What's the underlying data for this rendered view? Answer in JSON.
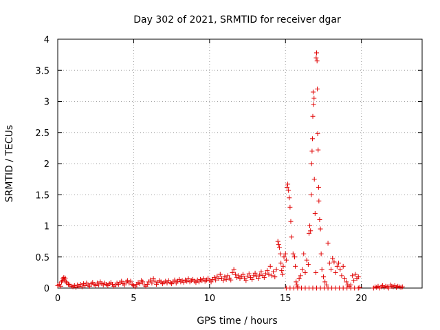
{
  "chart_data": {
    "type": "scatter",
    "title": "Day 302 of 2021, SRMTID for receiver dgar",
    "xlabel": "GPS time / hours",
    "ylabel": "SRMTID / TECUs",
    "xlim": [
      0,
      24
    ],
    "ylim": [
      0,
      4
    ],
    "x_ticks": [
      0,
      5,
      10,
      15,
      20
    ],
    "y_ticks": [
      0,
      0.5,
      1,
      1.5,
      2,
      2.5,
      3,
      3.5,
      4
    ],
    "x_tick_labels": [
      "0",
      "5",
      "10",
      "15",
      "20"
    ],
    "y_tick_labels": [
      "0",
      "0.5",
      "1",
      "1.5",
      "2",
      "2.5",
      "3",
      "3.5",
      "4"
    ],
    "grid": true,
    "marker": "+",
    "color": "#e00000",
    "series": [
      {
        "name": "dgar",
        "points": [
          [
            0.0,
            0.04
          ],
          [
            0.1,
            0.06
          ],
          [
            0.2,
            0.03
          ],
          [
            0.25,
            0.1
          ],
          [
            0.3,
            0.12
          ],
          [
            0.35,
            0.15
          ],
          [
            0.4,
            0.17
          ],
          [
            0.45,
            0.13
          ],
          [
            0.5,
            0.16
          ],
          [
            0.55,
            0.1
          ],
          [
            0.6,
            0.08
          ],
          [
            0.7,
            0.06
          ],
          [
            0.8,
            0.05
          ],
          [
            0.9,
            0.03
          ],
          [
            1.0,
            0.02
          ],
          [
            1.1,
            0.04
          ],
          [
            1.2,
            0.01
          ],
          [
            1.3,
            0.05
          ],
          [
            1.4,
            0.03
          ],
          [
            1.5,
            0.06
          ],
          [
            1.6,
            0.02
          ],
          [
            1.7,
            0.07
          ],
          [
            1.8,
            0.04
          ],
          [
            1.9,
            0.08
          ],
          [
            2.0,
            0.05
          ],
          [
            2.1,
            0.03
          ],
          [
            2.2,
            0.07
          ],
          [
            2.3,
            0.09
          ],
          [
            2.4,
            0.06
          ],
          [
            2.5,
            0.04
          ],
          [
            2.6,
            0.08
          ],
          [
            2.7,
            0.05
          ],
          [
            2.8,
            0.1
          ],
          [
            2.9,
            0.07
          ],
          [
            3.0,
            0.05
          ],
          [
            3.1,
            0.08
          ],
          [
            3.2,
            0.06
          ],
          [
            3.3,
            0.04
          ],
          [
            3.4,
            0.07
          ],
          [
            3.5,
            0.09
          ],
          [
            3.6,
            0.06
          ],
          [
            3.7,
            0.03
          ],
          [
            3.8,
            0.05
          ],
          [
            3.9,
            0.08
          ],
          [
            4.0,
            0.06
          ],
          [
            4.1,
            0.09
          ],
          [
            4.2,
            0.11
          ],
          [
            4.3,
            0.07
          ],
          [
            4.4,
            0.05
          ],
          [
            4.5,
            0.1
          ],
          [
            4.6,
            0.12
          ],
          [
            4.7,
            0.08
          ],
          [
            4.8,
            0.11
          ],
          [
            4.9,
            0.06
          ],
          [
            5.0,
            0.04
          ],
          [
            5.1,
            0.02
          ],
          [
            5.2,
            0.06
          ],
          [
            5.3,
            0.09
          ],
          [
            5.4,
            0.07
          ],
          [
            5.5,
            0.12
          ],
          [
            5.6,
            0.1
          ],
          [
            5.7,
            0.05
          ],
          [
            5.8,
            0.03
          ],
          [
            5.9,
            0.06
          ],
          [
            6.0,
            0.1
          ],
          [
            6.1,
            0.13
          ],
          [
            6.2,
            0.08
          ],
          [
            6.3,
            0.15
          ],
          [
            6.4,
            0.11
          ],
          [
            6.5,
            0.06
          ],
          [
            6.6,
            0.09
          ],
          [
            6.7,
            0.12
          ],
          [
            6.8,
            0.1
          ],
          [
            6.9,
            0.07
          ],
          [
            7.0,
            0.09
          ],
          [
            7.1,
            0.11
          ],
          [
            7.2,
            0.08
          ],
          [
            7.3,
            0.12
          ],
          [
            7.4,
            0.09
          ],
          [
            7.5,
            0.07
          ],
          [
            7.6,
            0.1
          ],
          [
            7.7,
            0.13
          ],
          [
            7.8,
            0.08
          ],
          [
            7.9,
            0.11
          ],
          [
            8.0,
            0.14
          ],
          [
            8.1,
            0.1
          ],
          [
            8.2,
            0.12
          ],
          [
            8.3,
            0.09
          ],
          [
            8.4,
            0.13
          ],
          [
            8.5,
            0.11
          ],
          [
            8.6,
            0.15
          ],
          [
            8.7,
            0.1
          ],
          [
            8.8,
            0.12
          ],
          [
            8.9,
            0.14
          ],
          [
            9.0,
            0.11
          ],
          [
            9.1,
            0.09
          ],
          [
            9.2,
            0.13
          ],
          [
            9.3,
            0.1
          ],
          [
            9.4,
            0.14
          ],
          [
            9.5,
            0.12
          ],
          [
            9.6,
            0.15
          ],
          [
            9.7,
            0.11
          ],
          [
            9.8,
            0.13
          ],
          [
            9.9,
            0.16
          ],
          [
            10.0,
            0.12
          ],
          [
            10.1,
            0.1
          ],
          [
            10.2,
            0.14
          ],
          [
            10.3,
            0.17
          ],
          [
            10.4,
            0.13
          ],
          [
            10.5,
            0.19
          ],
          [
            10.6,
            0.15
          ],
          [
            10.7,
            0.22
          ],
          [
            10.8,
            0.16
          ],
          [
            10.9,
            0.12
          ],
          [
            11.0,
            0.18
          ],
          [
            11.1,
            0.14
          ],
          [
            11.2,
            0.2
          ],
          [
            11.3,
            0.16
          ],
          [
            11.4,
            0.13
          ],
          [
            11.5,
            0.25
          ],
          [
            11.6,
            0.3
          ],
          [
            11.7,
            0.22
          ],
          [
            11.8,
            0.17
          ],
          [
            11.9,
            0.2
          ],
          [
            12.0,
            0.15
          ],
          [
            12.1,
            0.18
          ],
          [
            12.2,
            0.22
          ],
          [
            12.3,
            0.16
          ],
          [
            12.4,
            0.12
          ],
          [
            12.5,
            0.19
          ],
          [
            12.6,
            0.23
          ],
          [
            12.7,
            0.17
          ],
          [
            12.8,
            0.14
          ],
          [
            12.9,
            0.2
          ],
          [
            13.0,
            0.24
          ],
          [
            13.1,
            0.19
          ],
          [
            13.2,
            0.15
          ],
          [
            13.3,
            0.21
          ],
          [
            13.4,
            0.26
          ],
          [
            13.5,
            0.2
          ],
          [
            13.6,
            0.17
          ],
          [
            13.7,
            0.23
          ],
          [
            13.8,
            0.28
          ],
          [
            13.9,
            0.22
          ],
          [
            14.0,
            0.35
          ],
          [
            14.1,
            0.2
          ],
          [
            14.2,
            0.26
          ],
          [
            14.3,
            0.18
          ],
          [
            14.4,
            0.3
          ],
          [
            14.5,
            0.75
          ],
          [
            14.55,
            0.7
          ],
          [
            14.6,
            0.65
          ],
          [
            14.65,
            0.55
          ],
          [
            14.7,
            0.4
          ],
          [
            14.75,
            0.28
          ],
          [
            14.8,
            0.22
          ],
          [
            14.85,
            0.35
          ],
          [
            14.9,
            0.5
          ],
          [
            15.0,
            0.55
          ],
          [
            15.05,
            0.45
          ],
          [
            15.1,
            1.62
          ],
          [
            15.15,
            1.67
          ],
          [
            15.2,
            1.57
          ],
          [
            15.25,
            1.45
          ],
          [
            15.3,
            1.3
          ],
          [
            15.35,
            1.07
          ],
          [
            15.4,
            0.82
          ],
          [
            15.5,
            0.55
          ],
          [
            15.6,
            0.5
          ],
          [
            15.65,
            0.35
          ],
          [
            15.7,
            0.1
          ],
          [
            15.75,
            0.05
          ],
          [
            15.8,
            0.02
          ],
          [
            15.9,
            0.15
          ],
          [
            16.0,
            0.2
          ],
          [
            16.1,
            0.3
          ],
          [
            16.2,
            0.55
          ],
          [
            16.3,
            0.25
          ],
          [
            16.4,
            0.45
          ],
          [
            16.5,
            0.38
          ],
          [
            16.55,
            0.88
          ],
          [
            16.6,
            1.0
          ],
          [
            16.65,
            0.92
          ],
          [
            16.7,
            1.5
          ],
          [
            16.72,
            2.0
          ],
          [
            16.75,
            2.2
          ],
          [
            16.78,
            2.4
          ],
          [
            16.8,
            2.76
          ],
          [
            16.82,
            3.15
          ],
          [
            16.85,
            2.95
          ],
          [
            16.88,
            3.05
          ],
          [
            16.9,
            1.75
          ],
          [
            16.95,
            1.2
          ],
          [
            17.0,
            0.25
          ],
          [
            17.02,
            3.7
          ],
          [
            17.05,
            3.78
          ],
          [
            17.08,
            3.65
          ],
          [
            17.1,
            3.2
          ],
          [
            17.12,
            2.48
          ],
          [
            17.15,
            2.22
          ],
          [
            17.18,
            1.62
          ],
          [
            17.2,
            1.4
          ],
          [
            17.25,
            1.1
          ],
          [
            17.3,
            0.95
          ],
          [
            17.35,
            0.55
          ],
          [
            17.4,
            0.3
          ],
          [
            17.5,
            0.18
          ],
          [
            17.6,
            0.1
          ],
          [
            17.7,
            0.05
          ],
          [
            17.8,
            0.72
          ],
          [
            17.9,
            0.4
          ],
          [
            18.0,
            0.3
          ],
          [
            18.1,
            0.48
          ],
          [
            18.2,
            0.42
          ],
          [
            18.3,
            0.25
          ],
          [
            18.4,
            0.35
          ],
          [
            18.5,
            0.4
          ],
          [
            18.6,
            0.3
          ],
          [
            18.7,
            0.2
          ],
          [
            18.8,
            0.35
          ],
          [
            18.9,
            0.15
          ],
          [
            19.0,
            0.1
          ],
          [
            19.1,
            0.05
          ],
          [
            19.2,
            0.03
          ],
          [
            19.3,
            0.05
          ],
          [
            19.4,
            0.2
          ],
          [
            19.5,
            0.12
          ],
          [
            19.6,
            0.22
          ],
          [
            19.7,
            0.15
          ],
          [
            19.8,
            0.18
          ],
          [
            19.9,
            0.01
          ],
          [
            15.05,
            0.0
          ],
          [
            15.3,
            0.0
          ],
          [
            15.55,
            0.0
          ],
          [
            15.8,
            0.0
          ],
          [
            16.05,
            0.0
          ],
          [
            16.3,
            0.0
          ],
          [
            16.55,
            0.0
          ],
          [
            16.8,
            0.0
          ],
          [
            17.05,
            0.0
          ],
          [
            17.3,
            0.0
          ],
          [
            17.55,
            0.0
          ],
          [
            17.8,
            0.0
          ],
          [
            18.05,
            0.0
          ],
          [
            18.3,
            0.0
          ],
          [
            18.55,
            0.0
          ],
          [
            18.8,
            0.0
          ],
          [
            19.05,
            0.0
          ],
          [
            19.3,
            0.0
          ],
          [
            19.55,
            0.0
          ],
          [
            19.8,
            0.0
          ],
          [
            20.8,
            0.0
          ],
          [
            20.9,
            0.02
          ],
          [
            21.0,
            0.01
          ],
          [
            21.1,
            0.03
          ],
          [
            21.2,
            0.0
          ],
          [
            21.3,
            0.02
          ],
          [
            21.4,
            0.04
          ],
          [
            21.5,
            0.01
          ],
          [
            21.6,
            0.03
          ],
          [
            21.7,
            0.02
          ],
          [
            21.8,
            0.0
          ],
          [
            21.9,
            0.05
          ],
          [
            22.0,
            0.03
          ],
          [
            22.1,
            0.02
          ],
          [
            22.2,
            0.04
          ],
          [
            22.3,
            0.01
          ],
          [
            22.4,
            0.03
          ],
          [
            22.5,
            0.02
          ],
          [
            22.6,
            0.01
          ],
          [
            22.7,
            0.02
          ]
        ]
      }
    ]
  }
}
